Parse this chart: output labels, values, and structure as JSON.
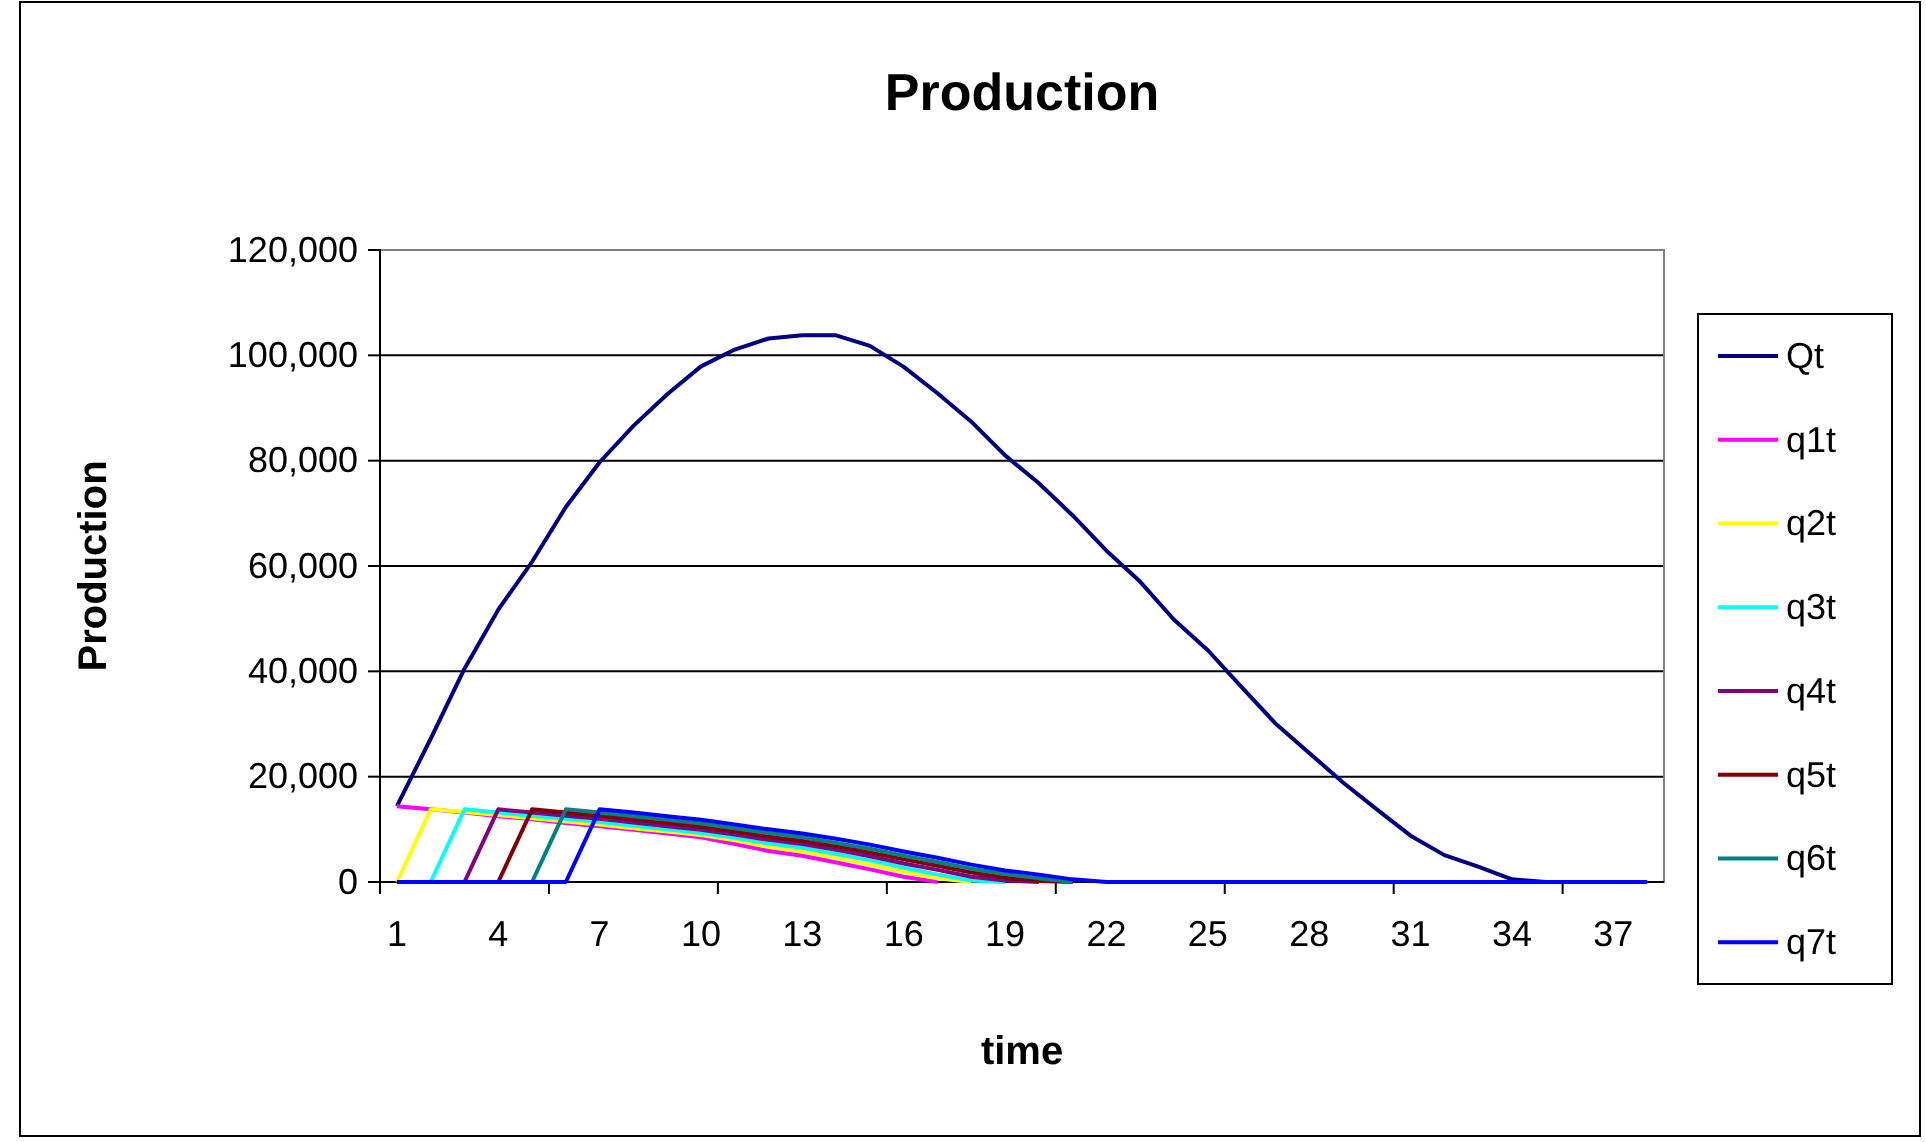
{
  "chart_data": {
    "type": "line",
    "title": "Production",
    "xlabel": "time",
    "ylabel": "Production",
    "categories": [
      "1",
      null,
      null,
      "4",
      null,
      null,
      "7",
      null,
      null,
      "10",
      null,
      null,
      "13",
      null,
      null,
      "16",
      null,
      null,
      "19",
      null,
      null,
      "22",
      null,
      null,
      "25",
      null,
      null,
      "28",
      null,
      null,
      "31",
      null,
      null,
      "34",
      null,
      null,
      "37",
      null
    ],
    "series": [
      {
        "name": "Qt",
        "color": "#000080",
        "values": [
          14400,
          27200,
          40500,
          51700,
          60800,
          71200,
          79700,
          86600,
          92600,
          97900,
          101100,
          103200,
          103800,
          103800,
          101800,
          97800,
          92800,
          87400,
          81000,
          75700,
          69600,
          62900,
          57000,
          49800,
          44000,
          37000,
          30100,
          24500,
          18900,
          13800,
          8800,
          5100,
          2900,
          500,
          0,
          null,
          null,
          null
        ]
      },
      {
        "name": "q1t",
        "color": "#ff00ff",
        "values": [
          14400,
          13800,
          13200,
          12500,
          11900,
          11200,
          10600,
          9900,
          9200,
          8500,
          7200,
          5900,
          5000,
          3700,
          2400,
          1000,
          0,
          null,
          null,
          null,
          null,
          null,
          null,
          null,
          null,
          null,
          null,
          null,
          null,
          null,
          null,
          null,
          null,
          null,
          null,
          null,
          null,
          null
        ]
      },
      {
        "name": "q2t",
        "color": "#ffff00",
        "values": [
          0,
          13800,
          13300,
          12700,
          12100,
          11500,
          10900,
          10200,
          9600,
          8900,
          7900,
          6700,
          5800,
          4600,
          3300,
          1900,
          700,
          0,
          null,
          null,
          null,
          null,
          null,
          null,
          null,
          null,
          null,
          null,
          null,
          null,
          null,
          null,
          null,
          null,
          null,
          null,
          null,
          null
        ]
      },
      {
        "name": "q3t",
        "color": "#00ffff",
        "values": [
          null,
          0,
          13800,
          13200,
          12600,
          12000,
          11400,
          10700,
          10000,
          9300,
          8400,
          7300,
          6500,
          5300,
          4100,
          2700,
          1400,
          300,
          0,
          null,
          null,
          null,
          null,
          null,
          null,
          null,
          null,
          null,
          null,
          null,
          null,
          null,
          null,
          null,
          null,
          null,
          null,
          null
        ]
      },
      {
        "name": "q4t",
        "color": "#800080",
        "values": [
          null,
          null,
          0,
          13800,
          13200,
          12600,
          12000,
          11300,
          10600,
          9900,
          9000,
          8000,
          7200,
          6100,
          4900,
          3500,
          2300,
          1000,
          300,
          0,
          null,
          null,
          null,
          null,
          null,
          null,
          null,
          null,
          null,
          null,
          null,
          null,
          null,
          null,
          null,
          null,
          null,
          null
        ]
      },
      {
        "name": "q5t",
        "color": "#800000",
        "values": [
          null,
          null,
          null,
          0,
          13800,
          13200,
          12600,
          11900,
          11200,
          10500,
          9600,
          8600,
          7800,
          6800,
          5600,
          4300,
          3100,
          1800,
          800,
          200,
          0,
          null,
          null,
          null,
          null,
          null,
          null,
          null,
          null,
          null,
          null,
          null,
          null,
          null,
          null,
          null,
          null,
          null
        ]
      },
      {
        "name": "q6t",
        "color": "#008080",
        "values": [
          null,
          null,
          null,
          null,
          0,
          13800,
          13200,
          12500,
          11800,
          11100,
          10200,
          9300,
          8500,
          7400,
          6300,
          5000,
          3800,
          2500,
          1500,
          700,
          0,
          null,
          null,
          null,
          null,
          null,
          null,
          null,
          null,
          null,
          null,
          null,
          null,
          null,
          null,
          null,
          null,
          null
        ]
      },
      {
        "name": "q7t",
        "color": "#0000ff",
        "values": [
          0,
          0,
          0,
          0,
          0,
          0,
          13800,
          13200,
          12500,
          11800,
          10900,
          10000,
          9200,
          8200,
          7100,
          5800,
          4600,
          3300,
          2200,
          1400,
          500,
          0,
          0,
          0,
          0,
          0,
          0,
          0,
          0,
          0,
          0,
          0,
          0,
          0,
          0,
          0,
          0,
          0
        ]
      }
    ],
    "ylim": [
      0,
      120000
    ],
    "yticks": [
      0,
      {
        "value": 20000,
        "label": "20,000"
      },
      {
        "value": 40000,
        "label": "40,000"
      },
      {
        "value": 60000,
        "label": "60,000"
      },
      {
        "value": 80000,
        "label": "80,000"
      },
      {
        "value": 100000,
        "label": "100,000"
      },
      {
        "value": 120000,
        "label": "120,000"
      }
    ],
    "grid": "y",
    "legend": "right",
    "marker": "none",
    "line_style": "solid"
  }
}
